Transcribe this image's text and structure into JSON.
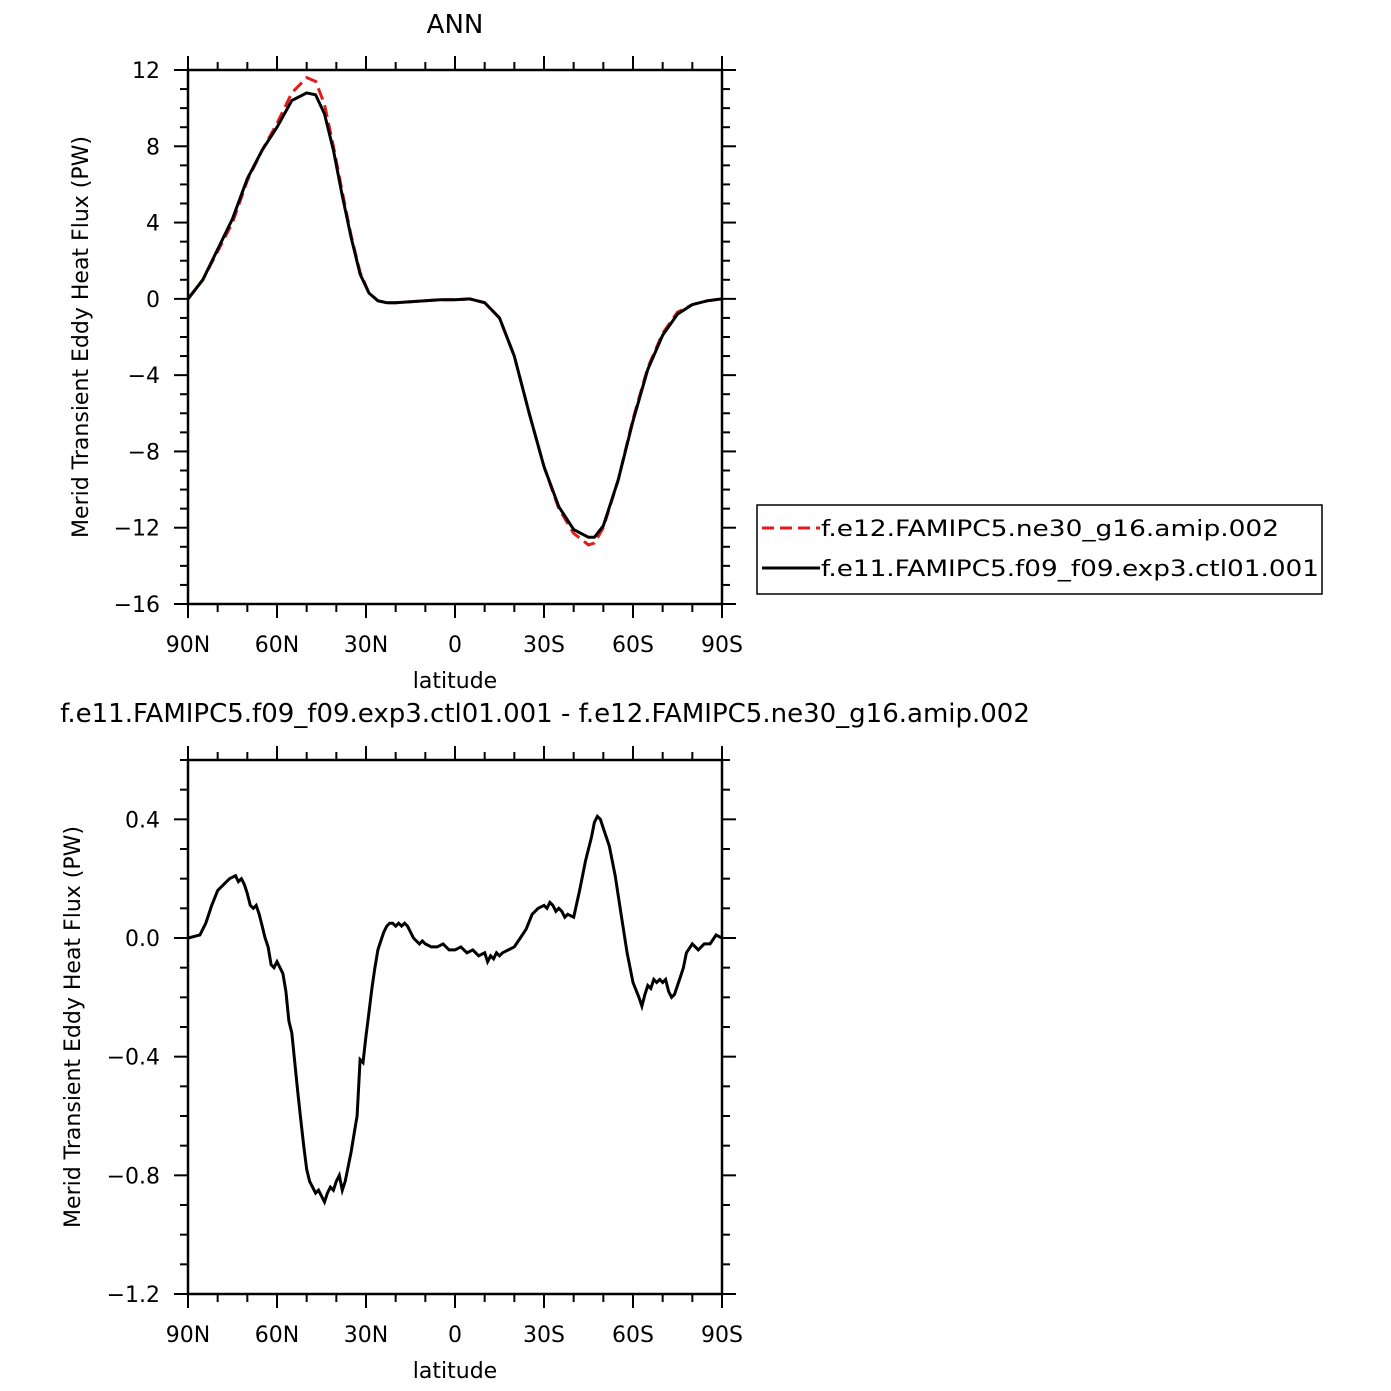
{
  "chart_data": [
    {
      "type": "line",
      "title": "ANN",
      "xlabel": "latitude",
      "ylabel": "Merid Transient Eddy Heat Flux (PW)",
      "xlim": [
        90,
        -90
      ],
      "ylim": [
        -16,
        12
      ],
      "x_ticks": [
        90,
        60,
        30,
        0,
        -30,
        -60,
        -90
      ],
      "x_tick_labels": [
        "90N",
        "60N",
        "30N",
        "0",
        "30S",
        "60S",
        "90S"
      ],
      "y_ticks": [
        -16,
        -12,
        -8,
        -4,
        0,
        4,
        8,
        12
      ],
      "y_tick_labels": [
        "−16",
        "−12",
        "−8",
        "−4",
        "0",
        "4",
        "8",
        "12"
      ],
      "legend_position": "right",
      "series": [
        {
          "name": "f.e12.FAMIPC5.ne30_g16.amip.002",
          "color": "#e41a1c",
          "dash": "dashed",
          "x": [
            90,
            85,
            80,
            75,
            70,
            65,
            60,
            55,
            50,
            47,
            44,
            41,
            38,
            35,
            32,
            29,
            26,
            23,
            20,
            15,
            10,
            5,
            0,
            -5,
            -10,
            -15,
            -20,
            -25,
            -30,
            -35,
            -40,
            -45,
            -47,
            -50,
            -55,
            -60,
            -65,
            -70,
            -75,
            -80,
            -85,
            -90
          ],
          "y": [
            0,
            1.0,
            2.5,
            4.0,
            6.2,
            7.8,
            9.2,
            10.8,
            11.6,
            11.4,
            10.2,
            8.0,
            5.6,
            3.3,
            1.4,
            0.3,
            -0.1,
            -0.2,
            -0.2,
            -0.15,
            -0.1,
            -0.05,
            -0.05,
            0,
            -0.2,
            -1.0,
            -3.0,
            -6.0,
            -8.8,
            -11.0,
            -12.3,
            -12.9,
            -12.8,
            -12.0,
            -9.5,
            -6.3,
            -3.6,
            -1.8,
            -0.7,
            -0.3,
            -0.1,
            0
          ]
        },
        {
          "name": "f.e11.FAMIPC5.f09_f09.exp3.ctl01.001",
          "color": "#000000",
          "dash": "solid",
          "x": [
            90,
            85,
            80,
            75,
            70,
            65,
            60,
            55,
            50,
            47,
            44,
            41,
            38,
            35,
            32,
            29,
            26,
            23,
            20,
            15,
            10,
            5,
            0,
            -5,
            -10,
            -15,
            -20,
            -25,
            -30,
            -35,
            -40,
            -45,
            -47,
            -50,
            -55,
            -60,
            -65,
            -70,
            -75,
            -80,
            -85,
            -90
          ],
          "y": [
            0,
            1.0,
            2.6,
            4.2,
            6.3,
            7.8,
            9.0,
            10.4,
            10.8,
            10.7,
            9.7,
            7.8,
            5.4,
            3.2,
            1.3,
            0.3,
            -0.1,
            -0.2,
            -0.2,
            -0.15,
            -0.1,
            -0.05,
            -0.05,
            0,
            -0.2,
            -1.0,
            -3.0,
            -6.0,
            -8.8,
            -10.9,
            -12.1,
            -12.5,
            -12.5,
            -11.9,
            -9.5,
            -6.4,
            -3.7,
            -1.9,
            -0.8,
            -0.3,
            -0.1,
            0
          ]
        }
      ]
    },
    {
      "type": "line",
      "title": "f.e11.FAMIPC5.f09_f09.exp3.ctl01.001 - f.e12.FAMIPC5.ne30_g16.amip.002",
      "xlabel": "latitude",
      "ylabel": "Merid Transient Eddy Heat Flux (PW)",
      "xlim": [
        90,
        -90
      ],
      "ylim": [
        -1.2,
        0.6
      ],
      "x_ticks": [
        90,
        60,
        30,
        0,
        -30,
        -60,
        -90
      ],
      "x_tick_labels": [
        "90N",
        "60N",
        "30N",
        "0",
        "30S",
        "60S",
        "90S"
      ],
      "y_ticks": [
        -1.2,
        -0.8,
        -0.4,
        0.0,
        0.4
      ],
      "y_tick_labels": [
        "−1.2",
        "−0.8",
        "−0.4",
        "0.0",
        "0.4"
      ],
      "series": [
        {
          "color": "#000000",
          "dash": "solid",
          "x": [
            90,
            86,
            84,
            82,
            80,
            78,
            76,
            74,
            73,
            72,
            71,
            70,
            69,
            68,
            67,
            66,
            65,
            64,
            63,
            62,
            61,
            60,
            59,
            58,
            57,
            56,
            55,
            54,
            53,
            52,
            51,
            50,
            49,
            48,
            47,
            46,
            45,
            44,
            43,
            42,
            41,
            40,
            39,
            38,
            37,
            36,
            35,
            34,
            33,
            32,
            31,
            30,
            29,
            28,
            27,
            26,
            25,
            24,
            23,
            22,
            21,
            20,
            19,
            18,
            17,
            16,
            15,
            14,
            13,
            12,
            11,
            10,
            8,
            6,
            4,
            2,
            0,
            -2,
            -4,
            -6,
            -8,
            -10,
            -11,
            -12,
            -13,
            -14,
            -15,
            -16,
            -18,
            -20,
            -22,
            -24,
            -26,
            -28,
            -30,
            -31,
            -32,
            -33,
            -34,
            -35,
            -36,
            -37,
            -38,
            -40,
            -42,
            -44,
            -46,
            -47,
            -48,
            -49,
            -50,
            -52,
            -54,
            -56,
            -58,
            -60,
            -62,
            -63,
            -64,
            -65,
            -66,
            -67,
            -68,
            -69,
            -70,
            -71,
            -72,
            -73,
            -74,
            -75,
            -76,
            -77,
            -78,
            -80,
            -82,
            -84,
            -86,
            -88,
            -90
          ],
          "y": [
            0,
            0.01,
            0.05,
            0.11,
            0.16,
            0.18,
            0.2,
            0.21,
            0.19,
            0.2,
            0.18,
            0.15,
            0.11,
            0.1,
            0.11,
            0.08,
            0.04,
            0.0,
            -0.03,
            -0.09,
            -0.1,
            -0.08,
            -0.1,
            -0.12,
            -0.18,
            -0.28,
            -0.32,
            -0.42,
            -0.52,
            -0.61,
            -0.7,
            -0.78,
            -0.82,
            -0.84,
            -0.86,
            -0.85,
            -0.87,
            -0.89,
            -0.86,
            -0.84,
            -0.85,
            -0.82,
            -0.8,
            -0.85,
            -0.82,
            -0.77,
            -0.72,
            -0.66,
            -0.6,
            -0.41,
            -0.42,
            -0.33,
            -0.25,
            -0.17,
            -0.1,
            -0.04,
            -0.01,
            0.02,
            0.04,
            0.05,
            0.05,
            0.04,
            0.05,
            0.04,
            0.05,
            0.04,
            0.02,
            0.0,
            -0.01,
            -0.02,
            -0.01,
            -0.02,
            -0.03,
            -0.03,
            -0.02,
            -0.04,
            -0.04,
            -0.03,
            -0.05,
            -0.04,
            -0.06,
            -0.05,
            -0.08,
            -0.06,
            -0.07,
            -0.05,
            -0.06,
            -0.05,
            -0.04,
            -0.03,
            0.0,
            0.03,
            0.08,
            0.1,
            0.11,
            0.1,
            0.12,
            0.11,
            0.09,
            0.1,
            0.09,
            0.07,
            0.08,
            0.07,
            0.16,
            0.26,
            0.34,
            0.39,
            0.41,
            0.4,
            0.37,
            0.31,
            0.21,
            0.08,
            -0.05,
            -0.15,
            -0.2,
            -0.23,
            -0.19,
            -0.16,
            -0.17,
            -0.14,
            -0.15,
            -0.14,
            -0.15,
            -0.14,
            -0.18,
            -0.2,
            -0.19,
            -0.16,
            -0.13,
            -0.1,
            -0.05,
            -0.02,
            -0.04,
            -0.02,
            -0.02,
            0.01,
            0.0
          ]
        }
      ]
    }
  ],
  "legend": {
    "entries": [
      "f.e12.FAMIPC5.ne30_g16.amip.002",
      "f.e11.FAMIPC5.f09_f09.exp3.ctl01.001"
    ]
  }
}
